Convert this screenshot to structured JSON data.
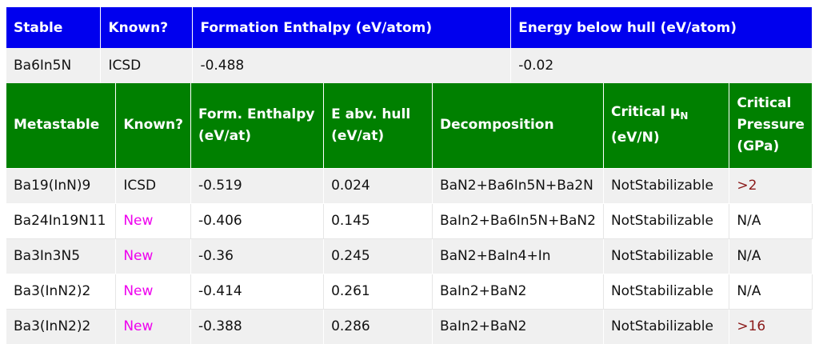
{
  "stable_table": {
    "headers": [
      "Stable",
      "Known?",
      "Formation Enthalpy (eV/atom)",
      "Energy below hull (eV/atom)"
    ],
    "row": [
      "Ba6In5N",
      "ICSD",
      "-0.488",
      "-0.02"
    ]
  },
  "metastable_table": {
    "headers": {
      "metastable": "Metastable",
      "known": "Known?",
      "form_enthalpy": [
        "Form. Enthalpy",
        "(eV/at)"
      ],
      "e_abv_hull": [
        "E abv. hull",
        "(eV/at)"
      ],
      "decomposition": "Decomposition",
      "critical_mu": {
        "prefix": "Critical μ",
        "sub": "N",
        "unit": "(eV/N)"
      },
      "critical_pressure": [
        "Critical",
        "Pressure",
        "(GPa)"
      ]
    },
    "rows": [
      {
        "formula": "Ba19(InN)9",
        "known": "ICSD",
        "enthalpy": "-0.519",
        "e_hull": "0.024",
        "decomposition": "BaN2+Ba6In5N+Ba2N",
        "mu": "NotStabilizable",
        "pressure": ">2"
      },
      {
        "formula": "Ba24In19N11",
        "known": "New",
        "enthalpy": "-0.406",
        "e_hull": "0.145",
        "decomposition": "BaIn2+Ba6In5N+BaN2",
        "mu": "NotStabilizable",
        "pressure": "N/A"
      },
      {
        "formula": "Ba3In3N5",
        "known": "New",
        "enthalpy": "-0.36",
        "e_hull": "0.245",
        "decomposition": "BaN2+BaIn4+In",
        "mu": "NotStabilizable",
        "pressure": "N/A"
      },
      {
        "formula": "Ba3(InN2)2",
        "known": "New",
        "enthalpy": "-0.414",
        "e_hull": "0.261",
        "decomposition": "BaIn2+BaN2",
        "mu": "NotStabilizable",
        "pressure": "N/A"
      },
      {
        "formula": "Ba3(InN2)2",
        "known": "New",
        "enthalpy": "-0.388",
        "e_hull": "0.286",
        "decomposition": "BaIn2+BaN2",
        "mu": "NotStabilizable",
        "pressure": ">16"
      }
    ]
  },
  "colors": {
    "stable_header": "#0000ee",
    "metastable_header": "#008000",
    "new_text": "#ee00ee",
    "pressure_value": "#8b1a1a"
  }
}
